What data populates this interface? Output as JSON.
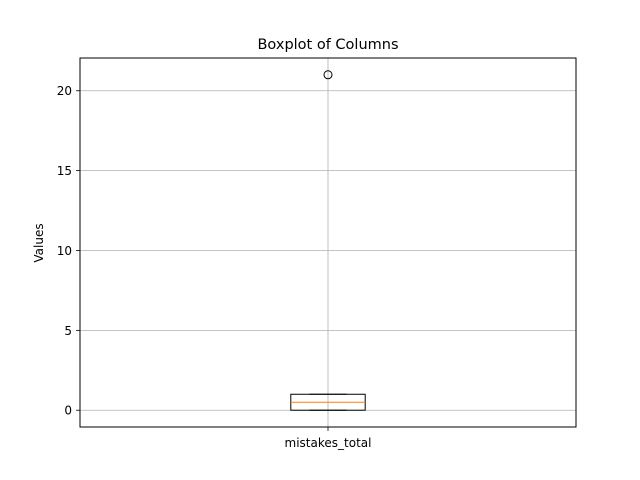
{
  "chart_data": {
    "type": "box",
    "title": "Boxplot of Columns",
    "xlabel": "",
    "ylabel": "Values",
    "categories": [
      "mistakes_total"
    ],
    "boxes": [
      {
        "name": "mistakes_total",
        "whisker_low": 0,
        "q1": 0,
        "median": 0.5,
        "q3": 1,
        "whisker_high": 1,
        "outliers": [
          21
        ]
      }
    ],
    "ylim": [
      -1.05,
      22.05
    ],
    "yticks": [
      0,
      5,
      10,
      15,
      20
    ],
    "grid": true,
    "colors": {
      "box": "#000000",
      "median": "#ff7f0e",
      "grid": "#b0b0b0"
    }
  }
}
